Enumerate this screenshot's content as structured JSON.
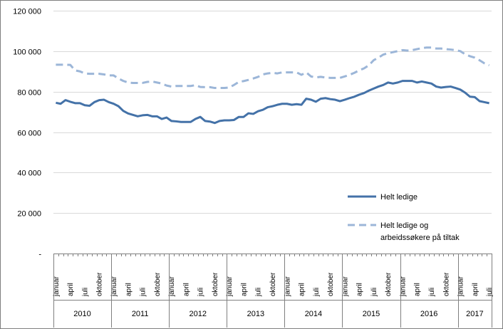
{
  "chart_data": {
    "type": "line",
    "title": "",
    "xlabel": "",
    "ylabel": "",
    "ylim": [
      0,
      120000
    ],
    "y_ticks": [
      {
        "value": 0,
        "label": "-"
      },
      {
        "value": 20000,
        "label": "20 000"
      },
      {
        "value": 40000,
        "label": "40 000"
      },
      {
        "value": 60000,
        "label": "60 000"
      },
      {
        "value": 80000,
        "label": "80 000"
      },
      {
        "value": 100000,
        "label": "100 000"
      },
      {
        "value": 120000,
        "label": "120 000"
      }
    ],
    "grid": true,
    "legend_position": "right",
    "years": [
      {
        "label": "2010",
        "months": 12
      },
      {
        "label": "2011",
        "months": 12
      },
      {
        "label": "2012",
        "months": 12
      },
      {
        "label": "2013",
        "months": 12
      },
      {
        "label": "2014",
        "months": 12
      },
      {
        "label": "2015",
        "months": 12
      },
      {
        "label": "2016",
        "months": 12
      },
      {
        "label": "2017",
        "months": 7
      }
    ],
    "month_labels": [
      "januar",
      "april",
      "juli",
      "oktober"
    ],
    "series": [
      {
        "name": "Helt ledige",
        "color": "#4472a8",
        "style": "solid",
        "values": [
          74500,
          74000,
          75800,
          75000,
          74300,
          74300,
          73300,
          73000,
          74800,
          75800,
          76000,
          74800,
          74000,
          72800,
          70500,
          69200,
          68500,
          67800,
          68300,
          68500,
          67800,
          67800,
          66500,
          67200,
          65500,
          65300,
          65000,
          65000,
          65000,
          66500,
          67500,
          65500,
          65200,
          64500,
          65500,
          65800,
          65800,
          66000,
          67500,
          67500,
          69300,
          69000,
          70300,
          71000,
          72300,
          72800,
          73500,
          74000,
          74000,
          73500,
          73800,
          73500,
          76500,
          76000,
          75000,
          76500,
          76800,
          76300,
          76000,
          75300,
          76000,
          76800,
          77500,
          78500,
          79300,
          80500,
          81500,
          82500,
          83300,
          84500,
          84000,
          84500,
          85300,
          85300,
          85300,
          84500,
          85000,
          84500,
          84000,
          82500,
          82000,
          82300,
          82500,
          81800,
          81000,
          79500,
          77500,
          77300,
          75300,
          74800,
          74300
        ]
      },
      {
        "name": "Helt ledige og arbeidssøkere på tiltak",
        "color": "#9cb6d8",
        "style": "dashed",
        "values": [
          93300,
          93300,
          93300,
          93200,
          90500,
          90000,
          89000,
          88800,
          88800,
          88800,
          88500,
          88000,
          88000,
          86500,
          85300,
          84500,
          84300,
          84300,
          84300,
          84800,
          85000,
          84500,
          84000,
          83000,
          82500,
          82800,
          82800,
          82800,
          82800,
          83200,
          82300,
          82200,
          82200,
          81800,
          81800,
          81800,
          82000,
          83300,
          84800,
          85200,
          85800,
          86500,
          87300,
          88500,
          89000,
          89300,
          89000,
          89500,
          89500,
          89500,
          89500,
          88300,
          89500,
          87500,
          87000,
          87300,
          87000,
          86800,
          86800,
          86800,
          87500,
          88300,
          89300,
          90500,
          91500,
          93000,
          95500,
          96800,
          98300,
          99000,
          99500,
          100000,
          100500,
          100300,
          100500,
          101000,
          101500,
          101800,
          101800,
          101300,
          101300,
          101000,
          100800,
          100500,
          100000,
          98500,
          97500,
          96800,
          95500,
          94000,
          93000
        ]
      }
    ]
  }
}
